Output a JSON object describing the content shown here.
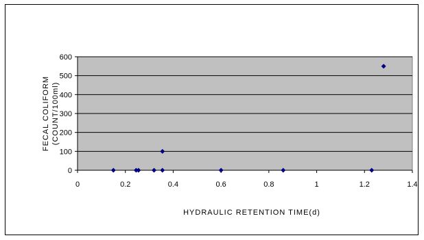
{
  "chart_data": {
    "type": "scatter",
    "title": "",
    "xlabel": "HYDRAULIC RETENTION TIME(d)",
    "ylabel_line1": "FECAL COLIFORM",
    "ylabel_line2": "(COUNT/100ml)",
    "xlim": [
      0,
      1.4
    ],
    "ylim": [
      0,
      600
    ],
    "x_ticks": [
      0,
      0.2,
      0.4,
      0.6,
      0.8,
      1,
      1.2,
      1.4
    ],
    "x_tick_labels": [
      "0",
      "0.2",
      "0.4",
      "0.6",
      "0.8",
      "1",
      "1.2",
      "1.4"
    ],
    "y_ticks": [
      0,
      100,
      200,
      300,
      400,
      500,
      600
    ],
    "y_tick_labels": [
      "0",
      "100",
      "200",
      "300",
      "400",
      "500",
      "600"
    ],
    "grid": "horizontal",
    "legend": "none",
    "series": [
      {
        "points": [
          {
            "x": 0.15,
            "y": 0
          },
          {
            "x": 0.245,
            "y": 0
          },
          {
            "x": 0.255,
            "y": 0
          },
          {
            "x": 0.32,
            "y": 0
          },
          {
            "x": 0.355,
            "y": 0
          },
          {
            "x": 0.355,
            "y": 100
          },
          {
            "x": 0.6,
            "y": 0
          },
          {
            "x": 0.86,
            "y": 0
          },
          {
            "x": 1.23,
            "y": 0
          },
          {
            "x": 1.28,
            "y": 550
          }
        ]
      }
    ],
    "colors": {
      "plot_bg": "#c0c0c0",
      "gridline": "#000000",
      "marker": "#000080"
    }
  }
}
